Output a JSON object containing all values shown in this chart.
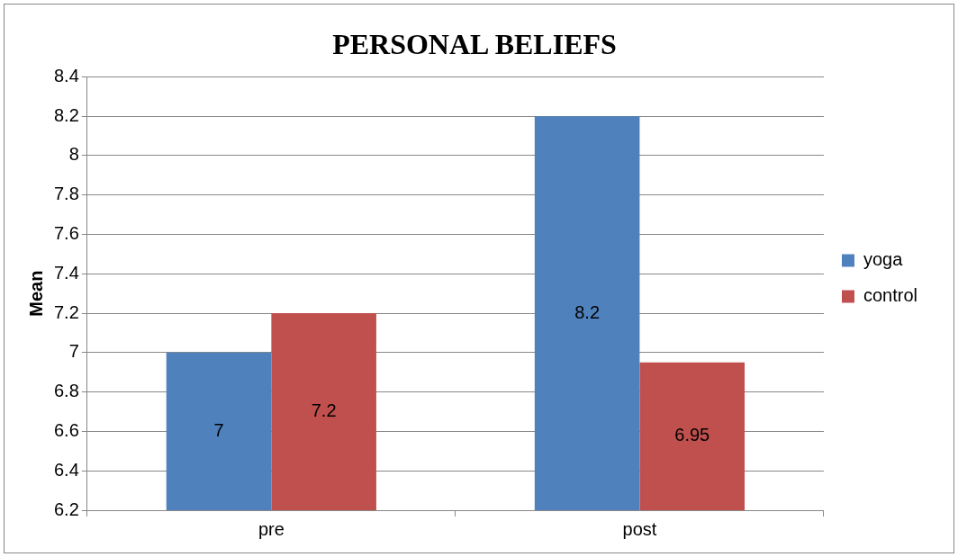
{
  "chart_data": {
    "type": "bar",
    "title": "PERSONAL BELIEFS",
    "ylabel": "Mean",
    "categories": [
      "pre",
      "post"
    ],
    "series": [
      {
        "name": "yoga",
        "color": "#4f81bd",
        "values": [
          7,
          8.2
        ]
      },
      {
        "name": "control",
        "color": "#c0504d",
        "values": [
          7.2,
          6.95
        ]
      }
    ],
    "ylim": [
      6.2,
      8.4
    ],
    "yticks": [
      6.2,
      6.4,
      6.6,
      6.8,
      7,
      7.2,
      7.4,
      7.6,
      7.8,
      8,
      8.2,
      8.4
    ],
    "grid": "y",
    "legend": "right",
    "data_labels": true
  }
}
